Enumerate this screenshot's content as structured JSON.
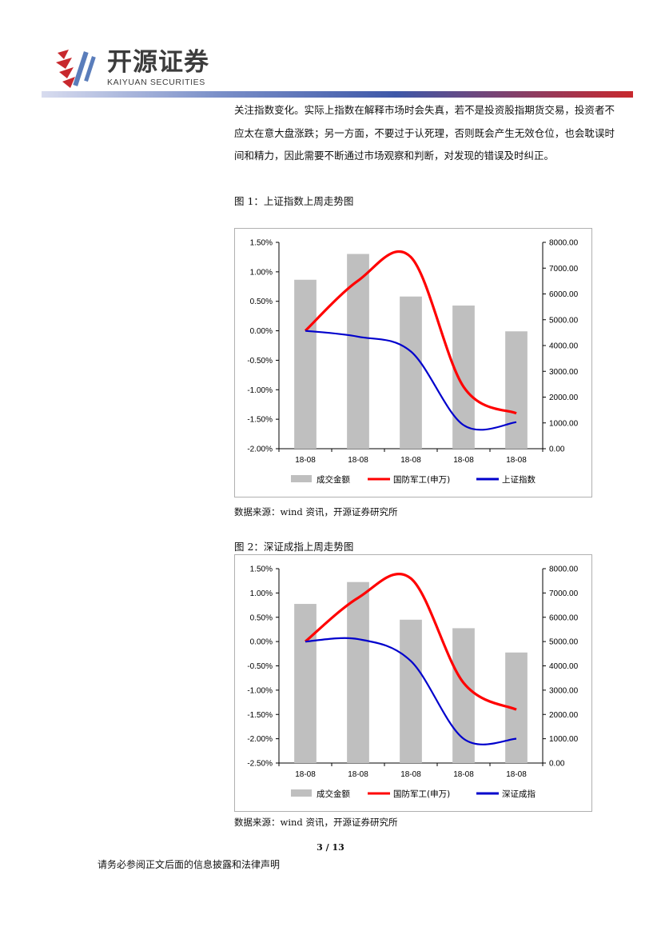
{
  "header": {
    "logo_cn": "开源证券",
    "logo_en": "KAIYUAN SECURITIES",
    "brand_colors": {
      "red": "#c8282d",
      "blue": "#5a7dbb",
      "text": "#3c3c3c"
    }
  },
  "body_text": "关注指数变化。实际上指数在解释市场时会失真，若不是投资股指期货交易，投资者不应太在意大盘涨跌；另一方面，不要过于认死理，否则既会产生无效仓位，也会耽误时间和精力，因此需要不断通过市场观察和判断，对发现的错误及时纠正。",
  "figure1": {
    "title": "图 1：上证指数上周走势图",
    "source": "数据来源：wind 资讯，开源证券研究所"
  },
  "figure2": {
    "title": "图 2：深证成指上周走势图",
    "source": "数据来源：wind 资讯，开源证券研究所"
  },
  "footer": {
    "page": "3 / 13",
    "disclaimer": "请务必参阅正文后面的信息披露和法律声明"
  },
  "chart_data": [
    {
      "type": "bar",
      "categories": [
        "18-08",
        "18-08",
        "18-08",
        "18-08",
        "18-08"
      ],
      "left_axis": {
        "ticks": [
          "1.50%",
          "1.00%",
          "0.50%",
          "0.00%",
          "-0.50%",
          "-1.00%",
          "-1.50%",
          "-2.00%"
        ],
        "range": [
          -2.0,
          1.5
        ]
      },
      "right_axis": {
        "ticks": [
          "8000.00",
          "7000.00",
          "6000.00",
          "5000.00",
          "4000.00",
          "3000.00",
          "2000.00",
          "1000.00",
          "0.00"
        ],
        "range": [
          0,
          8000
        ]
      },
      "series": [
        {
          "name": "成交金额",
          "kind": "bar",
          "axis": "right",
          "color": "#bfbfbf",
          "values": [
            6550,
            7550,
            5900,
            5550,
            4550
          ]
        },
        {
          "name": "国防军工(申万)",
          "kind": "line",
          "axis": "left",
          "color": "#ff0000",
          "values": [
            0.0,
            0.85,
            1.25,
            -0.95,
            -1.4
          ]
        },
        {
          "name": "上证指数",
          "kind": "line",
          "axis": "left",
          "color": "#0000cc",
          "values": [
            0.0,
            -0.1,
            -0.35,
            -1.6,
            -1.55
          ]
        }
      ],
      "legend": "bottom"
    },
    {
      "type": "bar",
      "categories": [
        "18-08",
        "18-08",
        "18-08",
        "18-08",
        "18-08"
      ],
      "left_axis": {
        "ticks": [
          "1.50%",
          "1.00%",
          "0.50%",
          "0.00%",
          "-0.50%",
          "-1.00%",
          "-1.50%",
          "-2.00%",
          "-2.50%"
        ],
        "range": [
          -2.5,
          1.5
        ]
      },
      "right_axis": {
        "ticks": [
          "8000.00",
          "7000.00",
          "6000.00",
          "5000.00",
          "4000.00",
          "3000.00",
          "2000.00",
          "1000.00",
          "0.00"
        ],
        "range": [
          0,
          8000
        ]
      },
      "series": [
        {
          "name": "成交金额",
          "kind": "bar",
          "axis": "right",
          "color": "#bfbfbf",
          "values": [
            6550,
            7450,
            5900,
            5550,
            4550
          ]
        },
        {
          "name": "国防军工(申万)",
          "kind": "line",
          "axis": "left",
          "color": "#ff0000",
          "values": [
            0.0,
            0.9,
            1.3,
            -0.85,
            -1.4
          ]
        },
        {
          "name": "深证成指",
          "kind": "line",
          "axis": "left",
          "color": "#0000cc",
          "values": [
            0.0,
            0.05,
            -0.4,
            -2.0,
            -2.0
          ]
        }
      ],
      "legend": "bottom"
    }
  ]
}
